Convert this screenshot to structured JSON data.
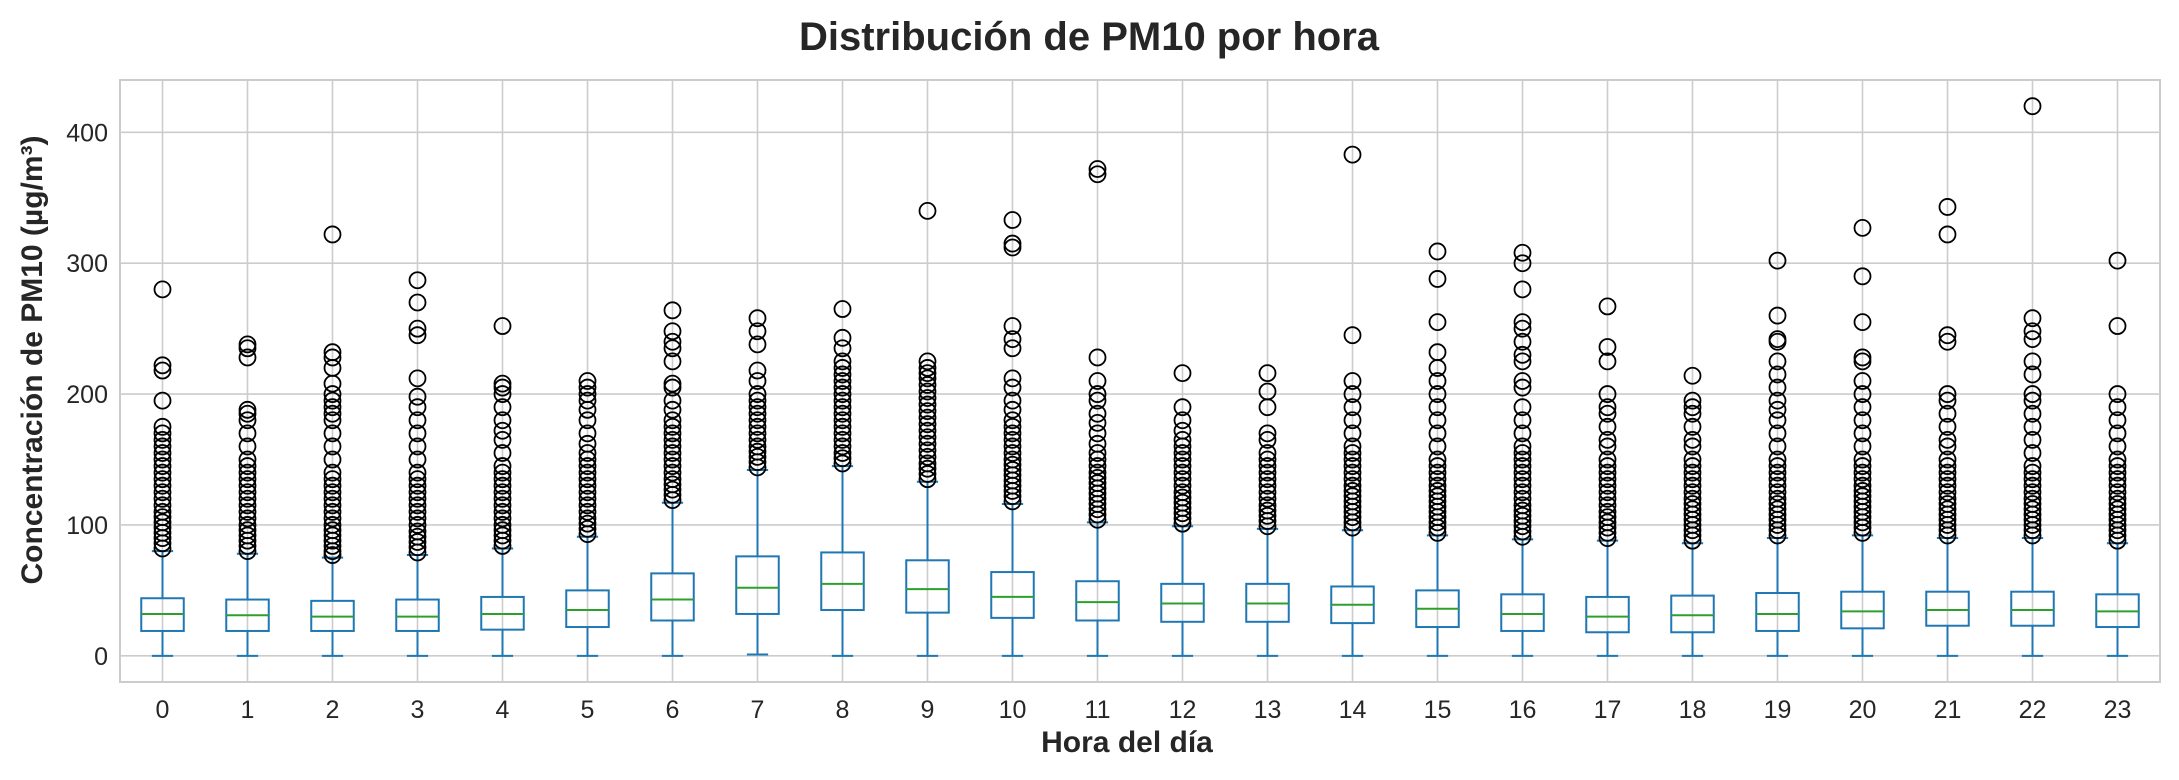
{
  "chart_data": {
    "type": "box",
    "title": "Distribución de PM10 por hora",
    "xlabel": "Hora del día",
    "ylabel": "Concentración de PM10 (µg/m³)",
    "ylim": [
      -20,
      440
    ],
    "yticks": [
      0,
      100,
      200,
      300,
      400
    ],
    "grid": true,
    "colors": {
      "box": "#1f77b4",
      "median": "#2ca02c",
      "outlier": "#000000",
      "grid": "#cccccc",
      "frame": "#cccccc"
    },
    "categories": [
      "0",
      "1",
      "2",
      "3",
      "4",
      "5",
      "6",
      "7",
      "8",
      "9",
      "10",
      "11",
      "12",
      "13",
      "14",
      "15",
      "16",
      "17",
      "18",
      "19",
      "20",
      "21",
      "22",
      "23"
    ],
    "boxes": [
      {
        "whislo": 0,
        "q1": 19,
        "med": 32,
        "q3": 44,
        "whishi": 80,
        "fliers": [
          82,
          86,
          90,
          94,
          98,
          102,
          106,
          110,
          115,
          120,
          125,
          130,
          135,
          140,
          145,
          150,
          155,
          160,
          165,
          170,
          175,
          195,
          218,
          222,
          280
        ]
      },
      {
        "whislo": 0,
        "q1": 19,
        "med": 31,
        "q3": 43,
        "whishi": 78,
        "fliers": [
          80,
          84,
          88,
          92,
          96,
          100,
          105,
          110,
          115,
          120,
          125,
          130,
          135,
          140,
          145,
          150,
          160,
          170,
          180,
          185,
          188,
          228,
          235,
          238
        ]
      },
      {
        "whislo": 0,
        "q1": 19,
        "med": 30,
        "q3": 42,
        "whishi": 75,
        "fliers": [
          77,
          80,
          84,
          88,
          92,
          96,
          100,
          105,
          110,
          115,
          120,
          125,
          130,
          135,
          140,
          150,
          160,
          170,
          180,
          185,
          190,
          195,
          200,
          208,
          220,
          228,
          232,
          322
        ]
      },
      {
        "whislo": 0,
        "q1": 19,
        "med": 30,
        "q3": 43,
        "whishi": 77,
        "fliers": [
          79,
          83,
          87,
          91,
          95,
          100,
          105,
          110,
          115,
          120,
          125,
          130,
          135,
          140,
          150,
          160,
          170,
          180,
          190,
          198,
          212,
          245,
          250,
          270,
          287
        ]
      },
      {
        "whislo": 0,
        "q1": 20,
        "med": 32,
        "q3": 45,
        "whishi": 82,
        "fliers": [
          84,
          88,
          92,
          96,
          100,
          105,
          110,
          115,
          120,
          125,
          130,
          135,
          140,
          145,
          155,
          165,
          172,
          180,
          190,
          200,
          205,
          208,
          252
        ]
      },
      {
        "whislo": 0,
        "q1": 22,
        "med": 35,
        "q3": 50,
        "whishi": 91,
        "fliers": [
          93,
          97,
          101,
          105,
          110,
          115,
          120,
          125,
          130,
          135,
          140,
          145,
          150,
          155,
          162,
          170,
          180,
          188,
          195,
          200,
          205,
          210
        ]
      },
      {
        "whislo": 0,
        "q1": 27,
        "med": 43,
        "q3": 63,
        "whishi": 117,
        "fliers": [
          119,
          123,
          127,
          131,
          135,
          140,
          145,
          150,
          155,
          160,
          165,
          170,
          175,
          180,
          188,
          195,
          205,
          208,
          225,
          235,
          240,
          248,
          264
        ]
      },
      {
        "whislo": 1,
        "q1": 32,
        "med": 52,
        "q3": 76,
        "whishi": 142,
        "fliers": [
          144,
          148,
          152,
          156,
          160,
          165,
          170,
          175,
          180,
          185,
          190,
          195,
          200,
          210,
          218,
          238,
          248,
          258
        ]
      },
      {
        "whislo": 0,
        "q1": 35,
        "med": 55,
        "q3": 79,
        "whishi": 145,
        "fliers": [
          147,
          151,
          155,
          160,
          165,
          170,
          175,
          180,
          185,
          190,
          195,
          200,
          205,
          210,
          215,
          220,
          225,
          235,
          243,
          265
        ]
      },
      {
        "whislo": 0,
        "q1": 33,
        "med": 51,
        "q3": 73,
        "whishi": 133,
        "fliers": [
          135,
          139,
          143,
          147,
          152,
          157,
          162,
          167,
          172,
          177,
          182,
          187,
          192,
          197,
          202,
          207,
          212,
          216,
          220,
          225,
          340
        ]
      },
      {
        "whislo": 0,
        "q1": 29,
        "med": 45,
        "q3": 64,
        "whishi": 116,
        "fliers": [
          118,
          122,
          126,
          130,
          134,
          138,
          142,
          146,
          150,
          155,
          160,
          165,
          170,
          175,
          180,
          188,
          195,
          205,
          212,
          235,
          242,
          252,
          312,
          315,
          333
        ]
      },
      {
        "whislo": 0,
        "q1": 27,
        "med": 41,
        "q3": 57,
        "whishi": 102,
        "fliers": [
          104,
          108,
          112,
          116,
          120,
          124,
          128,
          132,
          136,
          140,
          145,
          150,
          155,
          162,
          170,
          178,
          185,
          195,
          200,
          210,
          228,
          368,
          372
        ]
      },
      {
        "whislo": 0,
        "q1": 26,
        "med": 40,
        "q3": 55,
        "whishi": 99,
        "fliers": [
          101,
          105,
          109,
          113,
          117,
          121,
          125,
          130,
          135,
          140,
          145,
          150,
          155,
          160,
          165,
          172,
          180,
          190,
          216
        ]
      },
      {
        "whislo": 0,
        "q1": 26,
        "med": 40,
        "q3": 55,
        "whishi": 97,
        "fliers": [
          99,
          103,
          107,
          111,
          115,
          120,
          125,
          130,
          135,
          140,
          145,
          150,
          155,
          165,
          170,
          190,
          202,
          216
        ]
      },
      {
        "whislo": 0,
        "q1": 25,
        "med": 39,
        "q3": 53,
        "whishi": 96,
        "fliers": [
          98,
          102,
          106,
          110,
          114,
          118,
          122,
          126,
          130,
          135,
          140,
          145,
          150,
          155,
          160,
          170,
          180,
          190,
          200,
          210,
          245,
          383
        ]
      },
      {
        "whislo": 0,
        "q1": 22,
        "med": 36,
        "q3": 50,
        "whishi": 92,
        "fliers": [
          94,
          98,
          102,
          106,
          110,
          114,
          118,
          122,
          126,
          130,
          135,
          140,
          145,
          150,
          160,
          170,
          180,
          190,
          200,
          210,
          220,
          232,
          255,
          288,
          309
        ]
      },
      {
        "whislo": 0,
        "q1": 19,
        "med": 32,
        "q3": 47,
        "whishi": 89,
        "fliers": [
          91,
          95,
          99,
          103,
          107,
          111,
          115,
          120,
          125,
          130,
          135,
          140,
          145,
          150,
          155,
          160,
          170,
          180,
          190,
          205,
          210,
          225,
          230,
          240,
          250,
          255,
          280,
          300,
          308
        ]
      },
      {
        "whislo": 0,
        "q1": 18,
        "med": 30,
        "q3": 45,
        "whishi": 88,
        "fliers": [
          90,
          94,
          98,
          102,
          106,
          110,
          115,
          120,
          125,
          130,
          135,
          140,
          145,
          150,
          160,
          165,
          175,
          185,
          190,
          200,
          225,
          236,
          267
        ]
      },
      {
        "whislo": 0,
        "q1": 18,
        "med": 31,
        "q3": 46,
        "whishi": 86,
        "fliers": [
          88,
          92,
          96,
          100,
          104,
          108,
          112,
          116,
          120,
          125,
          130,
          135,
          140,
          145,
          150,
          160,
          165,
          175,
          185,
          190,
          195,
          214
        ]
      },
      {
        "whislo": 0,
        "q1": 19,
        "med": 32,
        "q3": 48,
        "whishi": 90,
        "fliers": [
          92,
          96,
          100,
          104,
          108,
          112,
          116,
          120,
          125,
          130,
          135,
          140,
          145,
          150,
          160,
          170,
          180,
          188,
          195,
          205,
          215,
          225,
          240,
          242,
          260,
          302
        ]
      },
      {
        "whislo": 0,
        "q1": 21,
        "med": 34,
        "q3": 49,
        "whishi": 92,
        "fliers": [
          94,
          98,
          102,
          106,
          110,
          114,
          118,
          122,
          126,
          130,
          135,
          140,
          145,
          150,
          160,
          170,
          180,
          190,
          200,
          210,
          225,
          228,
          255,
          290,
          327
        ]
      },
      {
        "whislo": 0,
        "q1": 23,
        "med": 35,
        "q3": 49,
        "whishi": 90,
        "fliers": [
          92,
          96,
          100,
          104,
          108,
          112,
          116,
          120,
          125,
          130,
          135,
          140,
          145,
          150,
          160,
          165,
          175,
          185,
          195,
          200,
          240,
          245,
          322,
          343
        ]
      },
      {
        "whislo": 0,
        "q1": 23,
        "med": 35,
        "q3": 49,
        "whishi": 90,
        "fliers": [
          92,
          96,
          100,
          104,
          108,
          112,
          116,
          120,
          125,
          130,
          135,
          140,
          145,
          155,
          165,
          175,
          185,
          195,
          200,
          215,
          225,
          242,
          248,
          258,
          420
        ]
      },
      {
        "whislo": 0,
        "q1": 22,
        "med": 34,
        "q3": 47,
        "whishi": 86,
        "fliers": [
          88,
          92,
          96,
          100,
          104,
          108,
          112,
          116,
          120,
          125,
          130,
          135,
          140,
          145,
          150,
          160,
          170,
          180,
          190,
          200,
          252,
          302
        ]
      }
    ]
  }
}
